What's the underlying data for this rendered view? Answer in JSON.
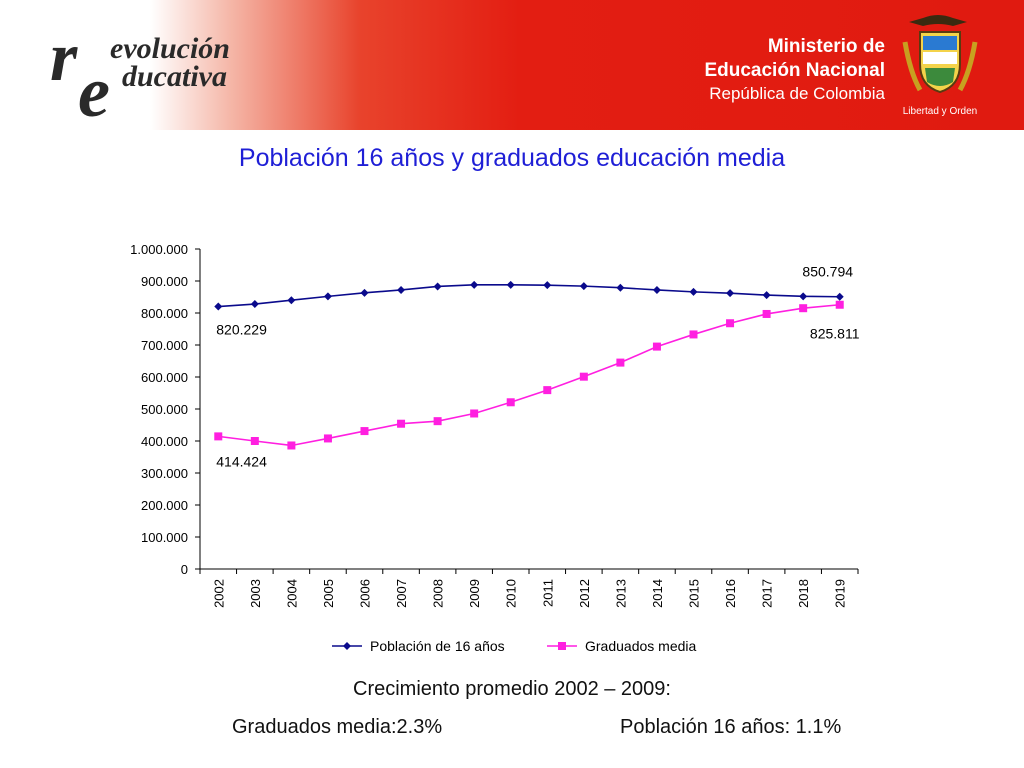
{
  "header": {
    "logo_left": {
      "line1": "revolución",
      "line2": "educativa",
      "mark": "re"
    },
    "logo_right": {
      "line1": "Ministerio de",
      "line2": "Educación Nacional",
      "line3": "República de Colombia",
      "motto": "Libertad y Orden"
    }
  },
  "title": "Población 16 años y graduados educación media",
  "chart_data": {
    "type": "line",
    "x": [
      "2002",
      "2003",
      "2004",
      "2005",
      "2006",
      "2007",
      "2008",
      "2009",
      "2010",
      "2011",
      "2012",
      "2013",
      "2014",
      "2015",
      "2016",
      "2017",
      "2018",
      "2019"
    ],
    "ylim": [
      0,
      1000000
    ],
    "yticks": [
      0,
      100000,
      200000,
      300000,
      400000,
      500000,
      600000,
      700000,
      800000,
      900000,
      1000000
    ],
    "ytick_labels": [
      "0",
      "100.000",
      "200.000",
      "300.000",
      "400.000",
      "500.000",
      "600.000",
      "700.000",
      "800.000",
      "900.000",
      "1.000.000"
    ],
    "legend_position": "bottom",
    "series": [
      {
        "name": "Población de 16 años",
        "color": "#0a0a8c",
        "marker": "diamond",
        "values": [
          820229,
          828000,
          840000,
          852000,
          863000,
          872000,
          883000,
          888000,
          888000,
          887000,
          884000,
          879000,
          872000,
          866000,
          862000,
          856000,
          852000,
          850794
        ]
      },
      {
        "name": "Graduados media",
        "color": "#ff1fe0",
        "marker": "square",
        "values": [
          414424,
          400000,
          386000,
          408000,
          431000,
          454000,
          462000,
          486000,
          521000,
          559000,
          601000,
          645000,
          695000,
          733000,
          768000,
          797000,
          815000,
          825811
        ]
      }
    ],
    "annotations": [
      {
        "text": "820.229",
        "series": 0,
        "index": 0
      },
      {
        "text": "850.794",
        "series": 0,
        "index": 17
      },
      {
        "text": "414.424",
        "series": 1,
        "index": 0
      },
      {
        "text": "825.811",
        "series": 1,
        "index": 17
      }
    ]
  },
  "footer": {
    "growth_heading": "Crecimiento promedio 2002 – 2009:",
    "graduados": "Graduados media:2.3%",
    "poblacion": "Población 16 años: 1.1%"
  }
}
